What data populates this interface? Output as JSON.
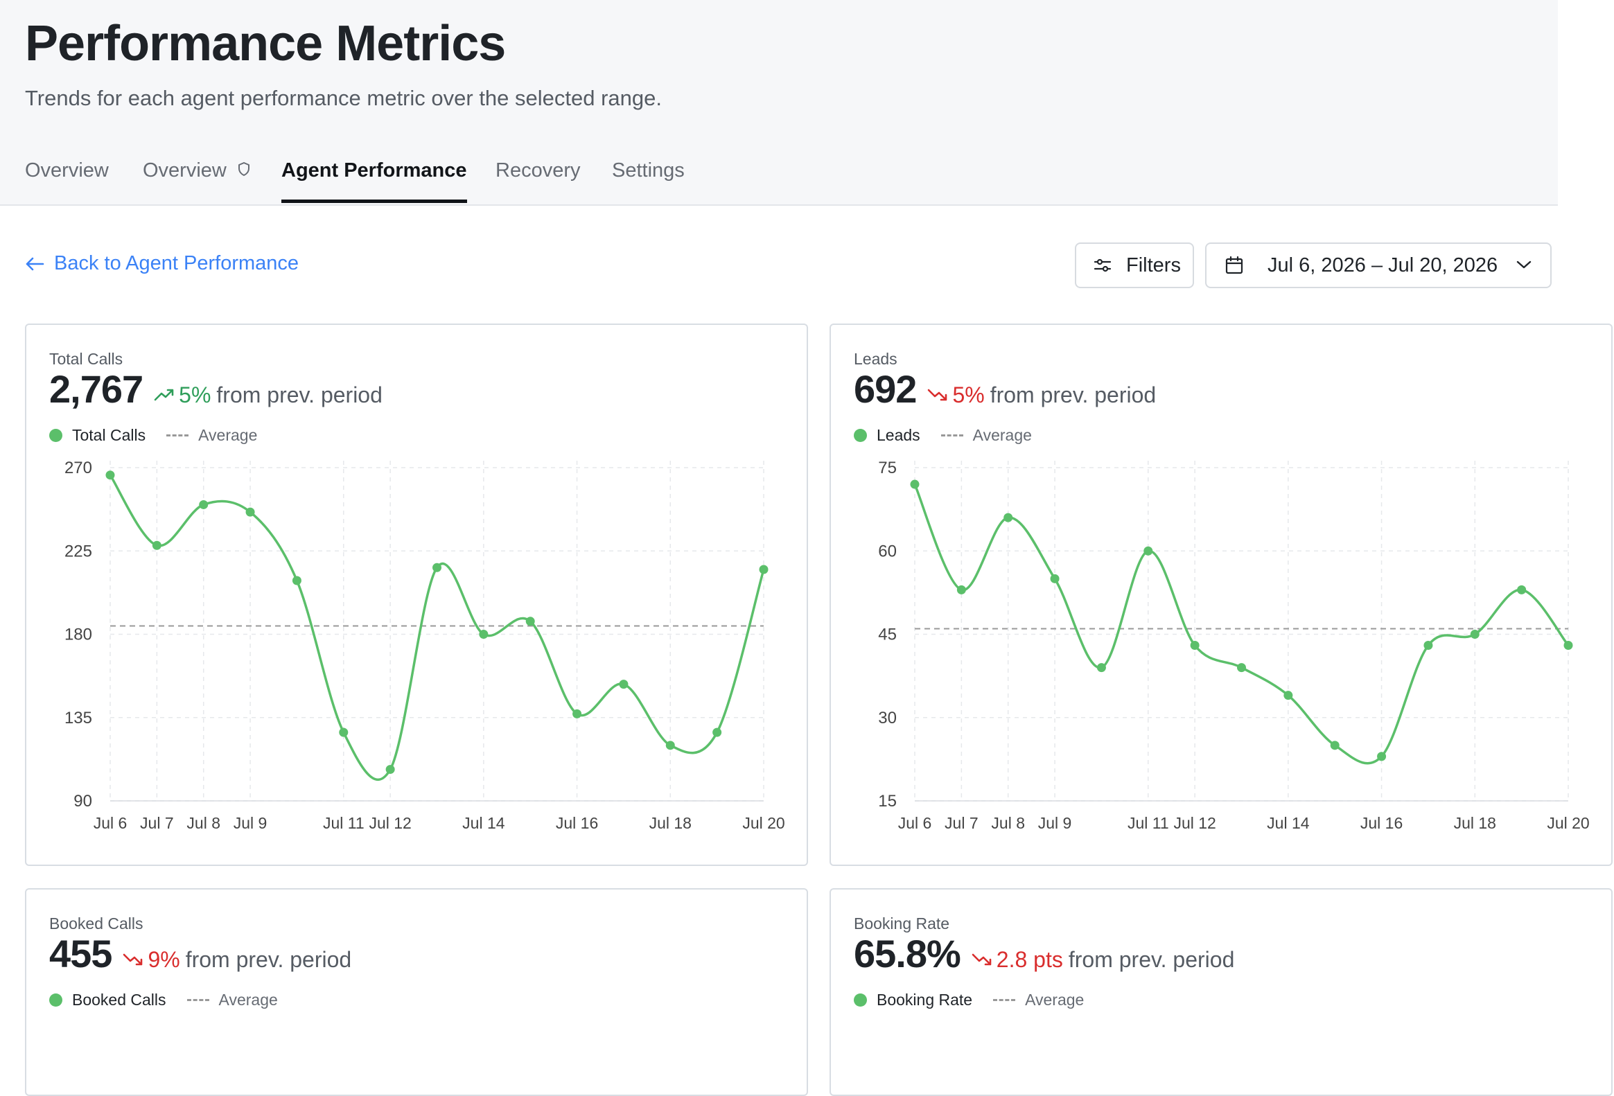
{
  "header": {
    "title": "Performance Metrics",
    "subtitle": "Trends for each agent performance metric over the selected range."
  },
  "tabs": [
    {
      "label": "Overview",
      "active": false
    },
    {
      "label": "Overview",
      "active": false,
      "icon": "shield-icon"
    },
    {
      "label": "Agent Performance",
      "active": true
    },
    {
      "label": "Recovery",
      "active": false
    },
    {
      "label": "Settings",
      "active": false
    }
  ],
  "toolbar": {
    "back_label": "Back to Agent Performance",
    "filters_label": "Filters",
    "date_range": "Jul 6, 2026 – Jul 20, 2026"
  },
  "colors": {
    "series": "#5bbf6a",
    "up": "#2f9e5a",
    "down": "#d92d2d",
    "link": "#3b82f6"
  },
  "cards": [
    {
      "label": "Total Calls",
      "value": "2,767",
      "trend": {
        "direction": "up",
        "value": "5%",
        "suffix": "from prev. period"
      },
      "legend": {
        "series": "Total Calls",
        "average": "Average"
      }
    },
    {
      "label": "Leads",
      "value": "692",
      "trend": {
        "direction": "down",
        "value": "5%",
        "suffix": "from prev. period"
      },
      "legend": {
        "series": "Leads",
        "average": "Average"
      }
    },
    {
      "label": "Booked Calls",
      "value": "455",
      "trend": {
        "direction": "down",
        "value": "9%",
        "suffix": "from prev. period"
      },
      "legend": {
        "series": "Booked Calls",
        "average": "Average"
      }
    },
    {
      "label": "Booking Rate",
      "value": "65.8%",
      "trend": {
        "direction": "down",
        "value": "2.8 pts",
        "suffix": "from prev. period"
      },
      "legend": {
        "series": "Booking Rate",
        "average": "Average"
      }
    }
  ],
  "chart_data": [
    {
      "type": "line",
      "x": [
        "Jul 6",
        "Jul 7",
        "Jul 8",
        "Jul 9",
        "Jul 10",
        "Jul 11",
        "Jul 12",
        "Jul 13",
        "Jul 14",
        "Jul 15",
        "Jul 16",
        "Jul 17",
        "Jul 18",
        "Jul 19",
        "Jul 20"
      ],
      "x_tick_labels": [
        "Jul 6",
        "Jul 7",
        "Jul 8",
        "Jul 9",
        "",
        "Jul 11",
        "Jul 12",
        "",
        "Jul 14",
        "",
        "Jul 16",
        "",
        "Jul 18",
        "",
        "Jul 20"
      ],
      "series": [
        {
          "name": "Total Calls",
          "values": [
            266,
            228,
            250,
            246,
            209,
            127,
            107,
            216,
            180,
            187,
            137,
            153,
            120,
            127,
            215
          ]
        }
      ],
      "average": 184.5,
      "yticks": [
        90,
        135,
        180,
        225,
        270
      ],
      "ylim": [
        90,
        270
      ],
      "grid": true
    },
    {
      "type": "line",
      "x": [
        "Jul 6",
        "Jul 7",
        "Jul 8",
        "Jul 9",
        "Jul 10",
        "Jul 11",
        "Jul 12",
        "Jul 13",
        "Jul 14",
        "Jul 15",
        "Jul 16",
        "Jul 17",
        "Jul 18",
        "Jul 19",
        "Jul 20"
      ],
      "x_tick_labels": [
        "Jul 6",
        "Jul 7",
        "Jul 8",
        "Jul 9",
        "",
        "Jul 11",
        "Jul 12",
        "",
        "Jul 14",
        "",
        "Jul 16",
        "",
        "Jul 18",
        "",
        "Jul 20"
      ],
      "series": [
        {
          "name": "Leads",
          "values": [
            72,
            53,
            66,
            55,
            39,
            60,
            43,
            39,
            34,
            25,
            23,
            43,
            45,
            53,
            43
          ]
        }
      ],
      "average": 46,
      "yticks": [
        15,
        30,
        45,
        60,
        75
      ],
      "ylim": [
        15,
        75
      ],
      "grid": true
    }
  ]
}
